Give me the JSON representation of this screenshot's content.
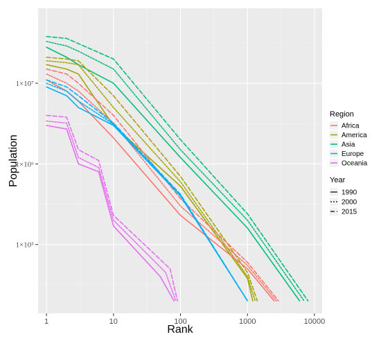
{
  "chart_data": {
    "type": "line",
    "title": "",
    "xlabel": "Rank",
    "ylabel": "Population",
    "x_scale": "log10",
    "y_scale": "log10",
    "xlim": [
      0.75,
      13000
    ],
    "ylim": [
      14000,
      85000000
    ],
    "x_ticks": [
      {
        "value": 1,
        "label": "1"
      },
      {
        "value": 10,
        "label": "10"
      },
      {
        "value": 100,
        "label": "100"
      },
      {
        "value": 1000,
        "label": "1000"
      },
      {
        "value": 10000,
        "label": "10000"
      }
    ],
    "y_ticks": [
      {
        "value": 100000,
        "label": "1×10⁵"
      },
      {
        "value": 1000000,
        "label": "1×10⁶"
      },
      {
        "value": 10000000,
        "label": "1×10⁷"
      }
    ],
    "grid": true,
    "legend_placement": "right",
    "color_legend": {
      "title": "Region",
      "entries": [
        {
          "name": "Africa",
          "color": "#F8766D"
        },
        {
          "name": "America",
          "color": "#A3A500"
        },
        {
          "name": "Asia",
          "color": "#00BF7D"
        },
        {
          "name": "Europe",
          "color": "#00B0F6"
        },
        {
          "name": "Oceania",
          "color": "#E76BF3"
        }
      ]
    },
    "linetype_legend": {
      "title": "Year",
      "entries": [
        {
          "name": "1990",
          "dash": "solid"
        },
        {
          "name": "2000",
          "dash": "dotted"
        },
        {
          "name": "2015",
          "dash": "dashed"
        }
      ]
    },
    "series": [
      {
        "region": "Asia",
        "year": "1990",
        "points": [
          [
            1,
            28000000
          ],
          [
            2,
            21000000
          ],
          [
            3,
            17000000
          ],
          [
            10,
            10000000
          ],
          [
            100,
            1200000
          ],
          [
            1000,
            160000
          ],
          [
            6000,
            20000
          ]
        ]
      },
      {
        "region": "Asia",
        "year": "2000",
        "points": [
          [
            1,
            33000000
          ],
          [
            2,
            29000000
          ],
          [
            3,
            25000000
          ],
          [
            10,
            15000000
          ],
          [
            100,
            1500000
          ],
          [
            1000,
            200000
          ],
          [
            7000,
            20000
          ]
        ]
      },
      {
        "region": "Asia",
        "year": "2015",
        "points": [
          [
            1,
            38000000
          ],
          [
            2,
            36000000
          ],
          [
            3,
            31000000
          ],
          [
            10,
            20000000
          ],
          [
            100,
            2000000
          ],
          [
            1000,
            240000
          ],
          [
            8000,
            20000
          ]
        ]
      },
      {
        "region": "America",
        "year": "1990",
        "points": [
          [
            1,
            17000000
          ],
          [
            2,
            15000000
          ],
          [
            3,
            13000000
          ],
          [
            10,
            3000000
          ],
          [
            100,
            530000
          ],
          [
            1000,
            38000
          ],
          [
            1200,
            20000
          ]
        ]
      },
      {
        "region": "America",
        "year": "2000",
        "points": [
          [
            1,
            19000000
          ],
          [
            2,
            18000000
          ],
          [
            3,
            17000000
          ],
          [
            10,
            5000000
          ],
          [
            100,
            600000
          ],
          [
            1000,
            40000
          ],
          [
            1300,
            20000
          ]
        ]
      },
      {
        "region": "America",
        "year": "2015",
        "points": [
          [
            1,
            21000000
          ],
          [
            2,
            20000000
          ],
          [
            3,
            19000000
          ],
          [
            10,
            7000000
          ],
          [
            100,
            700000
          ],
          [
            1000,
            45000
          ],
          [
            1400,
            20000
          ]
        ]
      },
      {
        "region": "Africa",
        "year": "1990",
        "points": [
          [
            1,
            11000000
          ],
          [
            2,
            8000000
          ],
          [
            3,
            6000000
          ],
          [
            10,
            2100000
          ],
          [
            100,
            230000
          ],
          [
            1000,
            50000
          ],
          [
            2500,
            20000
          ]
        ]
      },
      {
        "region": "Africa",
        "year": "2000",
        "points": [
          [
            1,
            13000000
          ],
          [
            2,
            10000000
          ],
          [
            3,
            8000000
          ],
          [
            10,
            3200000
          ],
          [
            100,
            300000
          ],
          [
            1000,
            55000
          ],
          [
            2700,
            20000
          ]
        ]
      },
      {
        "region": "Africa",
        "year": "2015",
        "points": [
          [
            1,
            15000000
          ],
          [
            2,
            13000000
          ],
          [
            3,
            10000000
          ],
          [
            10,
            4000000
          ],
          [
            100,
            370000
          ],
          [
            1000,
            60000
          ],
          [
            2900,
            20000
          ]
        ]
      },
      {
        "region": "Europe",
        "year": "1990",
        "points": [
          [
            1,
            9000000
          ],
          [
            2,
            7000000
          ],
          [
            3,
            5000000
          ],
          [
            10,
            3000000
          ],
          [
            100,
            400000
          ],
          [
            1000,
            20000
          ]
        ]
      },
      {
        "region": "Europe",
        "year": "2000",
        "points": [
          [
            1,
            10000000
          ],
          [
            2,
            8000000
          ],
          [
            3,
            6000000
          ],
          [
            10,
            3100000
          ],
          [
            100,
            410000
          ],
          [
            1000,
            20000
          ]
        ]
      },
      {
        "region": "Europe",
        "year": "2015",
        "points": [
          [
            1,
            11000000
          ],
          [
            2,
            9000000
          ],
          [
            3,
            7000000
          ],
          [
            10,
            3200000
          ],
          [
            100,
            420000
          ],
          [
            1000,
            20000
          ]
        ]
      },
      {
        "region": "Oceania",
        "year": "1990",
        "points": [
          [
            1,
            3000000
          ],
          [
            2,
            2700000
          ],
          [
            3,
            1000000
          ],
          [
            6,
            800000
          ],
          [
            10,
            170000
          ],
          [
            50,
            40000
          ],
          [
            80,
            20000
          ]
        ]
      },
      {
        "region": "Oceania",
        "year": "2000",
        "points": [
          [
            1,
            3400000
          ],
          [
            2,
            3200000
          ],
          [
            3,
            1200000
          ],
          [
            6,
            900000
          ],
          [
            10,
            200000
          ],
          [
            60,
            45000
          ],
          [
            85,
            20000
          ]
        ]
      },
      {
        "region": "Oceania",
        "year": "2015",
        "points": [
          [
            1,
            4000000
          ],
          [
            2,
            3800000
          ],
          [
            3,
            1500000
          ],
          [
            6,
            1100000
          ],
          [
            10,
            230000
          ],
          [
            70,
            50000
          ],
          [
            90,
            20000
          ]
        ]
      }
    ]
  }
}
